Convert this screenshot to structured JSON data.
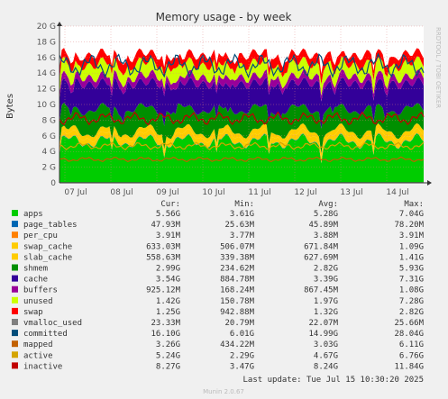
{
  "chart_data": {
    "type": "area",
    "title": "Memory usage - by week",
    "ylabel": "Bytes",
    "ylim": [
      0,
      20
    ],
    "yticks": [
      "0",
      "2 G",
      "4 G",
      "6 G",
      "8 G",
      "10 G",
      "12 G",
      "14 G",
      "16 G",
      "18 G",
      "20 G"
    ],
    "categories": [
      "07 Jul",
      "08 Jul",
      "09 Jul",
      "10 Jul",
      "11 Jul",
      "12 Jul",
      "13 Jul",
      "14 Jul"
    ],
    "grid": true,
    "stack_order": [
      "apps",
      "page_tables",
      "per_cpu",
      "swap_cache",
      "slab_cache",
      "shmem",
      "cache",
      "buffers",
      "unused",
      "swap"
    ],
    "line_order": [
      "vmalloc_used",
      "committed",
      "mapped",
      "active",
      "inactive"
    ],
    "watermark": "RRDTOOL / TOBI OETIKER",
    "legend_headers": {
      "cur": "Cur:",
      "min": "Min:",
      "avg": "Avg:",
      "max": "Max:"
    },
    "series": [
      {
        "name": "apps",
        "color": "#00cc00",
        "cur": "5.56G",
        "min": "3.61G",
        "avg": "5.28G",
        "max": "7.04G",
        "level": 5.3
      },
      {
        "name": "page_tables",
        "color": "#0066b3",
        "cur": "47.93M",
        "min": "25.63M",
        "avg": "45.89M",
        "max": "78.20M",
        "level": 0.05
      },
      {
        "name": "per_cpu",
        "color": "#ff8000",
        "cur": "3.91M",
        "min": "3.77M",
        "avg": "3.88M",
        "max": "3.91M",
        "level": 0.004
      },
      {
        "name": "swap_cache",
        "color": "#ffcc00",
        "cur": "633.03M",
        "min": "506.07M",
        "avg": "671.84M",
        "max": "1.09G",
        "level": 0.65
      },
      {
        "name": "slab_cache",
        "color": "#ffcc00",
        "cur": "558.63M",
        "min": "339.38M",
        "avg": "627.69M",
        "max": "1.41G",
        "level": 0.6
      },
      {
        "name": "shmem",
        "color": "#008f00",
        "cur": "2.99G",
        "min": "234.62M",
        "avg": "2.82G",
        "max": "5.93G",
        "level": 2.8
      },
      {
        "name": "cache",
        "color": "#330099",
        "cur": "3.54G",
        "min": "884.78M",
        "avg": "3.39G",
        "max": "7.31G",
        "level": 3.3
      },
      {
        "name": "buffers",
        "color": "#990099",
        "cur": "925.12M",
        "min": "168.24M",
        "avg": "867.45M",
        "max": "1.08G",
        "level": 0.9
      },
      {
        "name": "unused",
        "color": "#ccff00",
        "cur": "1.42G",
        "min": "150.78M",
        "avg": "1.97G",
        "max": "7.28G",
        "level": 1.6
      },
      {
        "name": "swap",
        "color": "#ff0000",
        "cur": "1.25G",
        "min": "942.88M",
        "avg": "1.32G",
        "max": "2.82G",
        "level": 1.2
      },
      {
        "name": "vmalloc_used",
        "color": "#808080",
        "cur": "23.33M",
        "min": "20.79M",
        "avg": "22.07M",
        "max": "25.66M",
        "level": 0.02
      },
      {
        "name": "committed",
        "color": "#024d7a",
        "cur": "16.10G",
        "min": "6.01G",
        "avg": "14.99G",
        "max": "28.04G",
        "level": 15.0
      },
      {
        "name": "mapped",
        "color": "#c26100",
        "cur": "3.26G",
        "min": "434.22M",
        "avg": "3.03G",
        "max": "6.11G",
        "level": 3.0
      },
      {
        "name": "active",
        "color": "#d4a500",
        "cur": "5.24G",
        "min": "2.29G",
        "avg": "4.67G",
        "max": "6.76G",
        "level": 4.7
      },
      {
        "name": "inactive",
        "color": "#c10000",
        "cur": "8.27G",
        "min": "3.47G",
        "avg": "8.24G",
        "max": "11.84G",
        "level": 8.2
      }
    ],
    "last_update": "Last update: Tue Jul 15 10:30:20 2025",
    "footer": "Munin 2.0.67"
  }
}
